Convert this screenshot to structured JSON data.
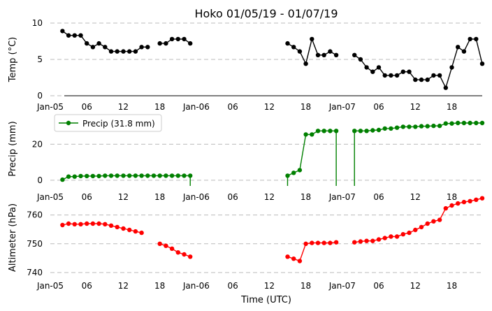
{
  "chart_data": {
    "title": "Hoko 01/05/19 - 01/07/19",
    "xlabel": "Time (UTC)",
    "time_axis": {
      "start": "2019-01-05T00:00",
      "end": "2019-01-07T23:00",
      "tick_labels": [
        "Jan-05",
        "06",
        "12",
        "18",
        "Jan-06",
        "06",
        "12",
        "18",
        "Jan-07",
        "06",
        "12",
        "18"
      ],
      "tick_times": [
        "2019-01-05T00:00",
        "2019-01-05T06:00",
        "2019-01-05T12:00",
        "2019-01-05T18:00",
        "2019-01-06T00:00",
        "2019-01-06T06:00",
        "2019-01-06T12:00",
        "2019-01-06T18:00",
        "2019-01-07T00:00",
        "2019-01-07T06:00",
        "2019-01-07T12:00",
        "2019-01-07T18:00"
      ]
    },
    "panels": [
      {
        "type": "line",
        "ylabel": "Temp (°C)",
        "ylim": [
          0,
          10
        ],
        "yticks": [
          0,
          5,
          10
        ],
        "grid": true,
        "color": "#000000",
        "legend": null,
        "series": [
          {
            "name": "",
            "points": [
              [
                "2019-01-05T02:00",
                8.9
              ],
              [
                "2019-01-05T03:00",
                8.3
              ],
              [
                "2019-01-05T04:00",
                8.3
              ],
              [
                "2019-01-05T05:00",
                8.3
              ],
              [
                "2019-01-05T06:00",
                7.2
              ],
              [
                "2019-01-05T07:00",
                6.7
              ],
              [
                "2019-01-05T08:00",
                7.2
              ],
              [
                "2019-01-05T09:00",
                6.7
              ],
              [
                "2019-01-05T10:00",
                6.1
              ],
              [
                "2019-01-05T11:00",
                6.1
              ],
              [
                "2019-01-05T12:00",
                6.1
              ],
              [
                "2019-01-05T13:00",
                6.1
              ],
              [
                "2019-01-05T14:00",
                6.1
              ],
              [
                "2019-01-05T15:00",
                6.7
              ],
              [
                "2019-01-05T16:00",
                6.7
              ],
              null,
              [
                "2019-01-05T18:00",
                7.2
              ],
              [
                "2019-01-05T19:00",
                7.2
              ],
              [
                "2019-01-05T20:00",
                7.8
              ],
              [
                "2019-01-05T21:00",
                7.8
              ],
              [
                "2019-01-05T22:00",
                7.8
              ],
              [
                "2019-01-05T23:00",
                7.2
              ],
              null,
              [
                "2019-01-06T15:00",
                7.2
              ],
              [
                "2019-01-06T16:00",
                6.7
              ],
              [
                "2019-01-06T17:00",
                6.1
              ],
              [
                "2019-01-06T18:00",
                4.4
              ],
              [
                "2019-01-06T19:00",
                7.8
              ],
              [
                "2019-01-06T20:00",
                5.6
              ],
              [
                "2019-01-06T21:00",
                5.6
              ],
              [
                "2019-01-06T22:00",
                6.1
              ],
              [
                "2019-01-06T23:00",
                5.6
              ],
              null,
              [
                "2019-01-07T02:00",
                5.6
              ],
              [
                "2019-01-07T03:00",
                5.0
              ],
              [
                "2019-01-07T04:00",
                3.9
              ],
              [
                "2019-01-07T05:00",
                3.3
              ],
              [
                "2019-01-07T06:00",
                3.9
              ],
              [
                "2019-01-07T07:00",
                2.8
              ],
              [
                "2019-01-07T08:00",
                2.8
              ],
              [
                "2019-01-07T09:00",
                2.8
              ],
              [
                "2019-01-07T10:00",
                3.3
              ],
              [
                "2019-01-07T11:00",
                3.3
              ],
              [
                "2019-01-07T12:00",
                2.2
              ],
              [
                "2019-01-07T13:00",
                2.2
              ],
              [
                "2019-01-07T14:00",
                2.2
              ],
              [
                "2019-01-07T15:00",
                2.8
              ],
              [
                "2019-01-07T16:00",
                2.8
              ],
              [
                "2019-01-07T17:00",
                1.1
              ],
              [
                "2019-01-07T18:00",
                3.9
              ],
              [
                "2019-01-07T19:00",
                6.7
              ],
              [
                "2019-01-07T20:00",
                6.1
              ],
              [
                "2019-01-07T21:00",
                7.8
              ],
              [
                "2019-01-07T22:00",
                7.8
              ],
              [
                "2019-01-07T23:00",
                4.4
              ]
            ]
          }
        ]
      },
      {
        "type": "line",
        "ylabel": "Precip (mm)",
        "ylim": [
          -2,
          38
        ],
        "yticks": [
          0,
          20
        ],
        "grid": true,
        "color": "#008000",
        "legend": "upper-left",
        "series": [
          {
            "name": "Precip (31.8 mm)",
            "points": [
              [
                "2019-01-05T02:00",
                0.3
              ],
              [
                "2019-01-05T03:00",
                2.0
              ],
              [
                "2019-01-05T04:00",
                2.0
              ],
              [
                "2019-01-05T05:00",
                2.3
              ],
              [
                "2019-01-05T06:00",
                2.3
              ],
              [
                "2019-01-05T07:00",
                2.3
              ],
              [
                "2019-01-05T08:00",
                2.3
              ],
              [
                "2019-01-05T09:00",
                2.5
              ],
              [
                "2019-01-05T10:00",
                2.5
              ],
              [
                "2019-01-05T11:00",
                2.5
              ],
              [
                "2019-01-05T12:00",
                2.5
              ],
              [
                "2019-01-05T13:00",
                2.5
              ],
              [
                "2019-01-05T14:00",
                2.5
              ],
              [
                "2019-01-05T15:00",
                2.5
              ],
              [
                "2019-01-05T16:00",
                2.5
              ],
              [
                "2019-01-05T17:00",
                2.5
              ],
              [
                "2019-01-05T18:00",
                2.5
              ],
              [
                "2019-01-05T19:00",
                2.5
              ],
              [
                "2019-01-05T20:00",
                2.5
              ],
              [
                "2019-01-05T21:00",
                2.5
              ],
              [
                "2019-01-05T22:00",
                2.5
              ],
              [
                "2019-01-05T23:00",
                2.5
              ],
              null,
              [
                "2019-01-06T15:00",
                2.5
              ],
              [
                "2019-01-06T16:00",
                4.1
              ],
              [
                "2019-01-06T17:00",
                5.6
              ],
              [
                "2019-01-06T18:00",
                25.4
              ],
              [
                "2019-01-06T19:00",
                25.4
              ],
              [
                "2019-01-06T20:00",
                27.4
              ],
              [
                "2019-01-06T21:00",
                27.4
              ],
              [
                "2019-01-06T22:00",
                27.4
              ],
              [
                "2019-01-06T23:00",
                27.4
              ],
              null,
              [
                "2019-01-07T02:00",
                27.4
              ],
              [
                "2019-01-07T03:00",
                27.4
              ],
              [
                "2019-01-07T04:00",
                27.4
              ],
              [
                "2019-01-07T05:00",
                27.7
              ],
              [
                "2019-01-07T06:00",
                27.9
              ],
              [
                "2019-01-07T07:00",
                28.7
              ],
              [
                "2019-01-07T08:00",
                28.7
              ],
              [
                "2019-01-07T09:00",
                29.2
              ],
              [
                "2019-01-07T10:00",
                29.7
              ],
              [
                "2019-01-07T11:00",
                29.7
              ],
              [
                "2019-01-07T12:00",
                29.7
              ],
              [
                "2019-01-07T13:00",
                30.0
              ],
              [
                "2019-01-07T14:00",
                30.0
              ],
              [
                "2019-01-07T15:00",
                30.2
              ],
              [
                "2019-01-07T16:00",
                30.2
              ],
              [
                "2019-01-07T17:00",
                31.5
              ],
              [
                "2019-01-07T18:00",
                31.5
              ],
              [
                "2019-01-07T19:00",
                31.8
              ],
              [
                "2019-01-07T20:00",
                31.8
              ],
              [
                "2019-01-07T21:00",
                31.8
              ],
              [
                "2019-01-07T22:00",
                31.8
              ],
              [
                "2019-01-07T23:00",
                31.8
              ]
            ]
          }
        ]
      },
      {
        "type": "line",
        "ylabel": "Altimeter (hPa)",
        "ylim": [
          740,
          765
        ],
        "yticks": [
          740,
          750,
          760
        ],
        "grid": true,
        "color": "#ff0000",
        "legend": null,
        "series": [
          {
            "name": "",
            "points": [
              [
                "2019-01-05T02:00",
                756.5
              ],
              [
                "2019-01-05T03:00",
                757.0
              ],
              [
                "2019-01-05T04:00",
                756.8
              ],
              [
                "2019-01-05T05:00",
                756.8
              ],
              [
                "2019-01-05T06:00",
                757.0
              ],
              [
                "2019-01-05T07:00",
                757.0
              ],
              [
                "2019-01-05T08:00",
                757.0
              ],
              [
                "2019-01-05T09:00",
                756.8
              ],
              [
                "2019-01-05T10:00",
                756.3
              ],
              [
                "2019-01-05T11:00",
                755.8
              ],
              [
                "2019-01-05T12:00",
                755.3
              ],
              [
                "2019-01-05T13:00",
                754.8
              ],
              [
                "2019-01-05T14:00",
                754.3
              ],
              [
                "2019-01-05T15:00",
                753.8
              ],
              null,
              [
                "2019-01-05T18:00",
                750.0
              ],
              [
                "2019-01-05T19:00",
                749.3
              ],
              [
                "2019-01-05T20:00",
                748.3
              ],
              [
                "2019-01-05T21:00",
                747.0
              ],
              [
                "2019-01-05T22:00",
                746.3
              ],
              [
                "2019-01-05T23:00",
                745.5
              ],
              null,
              [
                "2019-01-06T15:00",
                745.5
              ],
              [
                "2019-01-06T16:00",
                744.8
              ],
              [
                "2019-01-06T17:00",
                744.0
              ],
              [
                "2019-01-06T18:00",
                750.0
              ],
              [
                "2019-01-06T19:00",
                750.3
              ],
              [
                "2019-01-06T20:00",
                750.3
              ],
              [
                "2019-01-06T21:00",
                750.3
              ],
              [
                "2019-01-06T22:00",
                750.3
              ],
              [
                "2019-01-06T23:00",
                750.5
              ],
              null,
              [
                "2019-01-07T02:00",
                750.5
              ],
              [
                "2019-01-07T03:00",
                750.8
              ],
              [
                "2019-01-07T04:00",
                751.0
              ],
              [
                "2019-01-07T05:00",
                751.0
              ],
              [
                "2019-01-07T06:00",
                751.5
              ],
              [
                "2019-01-07T07:00",
                752.0
              ],
              [
                "2019-01-07T08:00",
                752.5
              ],
              [
                "2019-01-07T09:00",
                752.5
              ],
              [
                "2019-01-07T10:00",
                753.3
              ],
              [
                "2019-01-07T11:00",
                753.8
              ],
              [
                "2019-01-07T12:00",
                754.8
              ],
              [
                "2019-01-07T13:00",
                755.8
              ],
              [
                "2019-01-07T14:00",
                757.0
              ],
              [
                "2019-01-07T15:00",
                757.8
              ],
              [
                "2019-01-07T16:00",
                758.3
              ],
              [
                "2019-01-07T17:00",
                762.3
              ],
              [
                "2019-01-07T18:00",
                763.3
              ],
              [
                "2019-01-07T19:00",
                764.0
              ],
              [
                "2019-01-07T20:00",
                764.5
              ],
              [
                "2019-01-07T21:00",
                764.8
              ],
              [
                "2019-01-07T22:00",
                765.3
              ],
              [
                "2019-01-07T23:00",
                765.8
              ]
            ]
          }
        ]
      }
    ]
  }
}
